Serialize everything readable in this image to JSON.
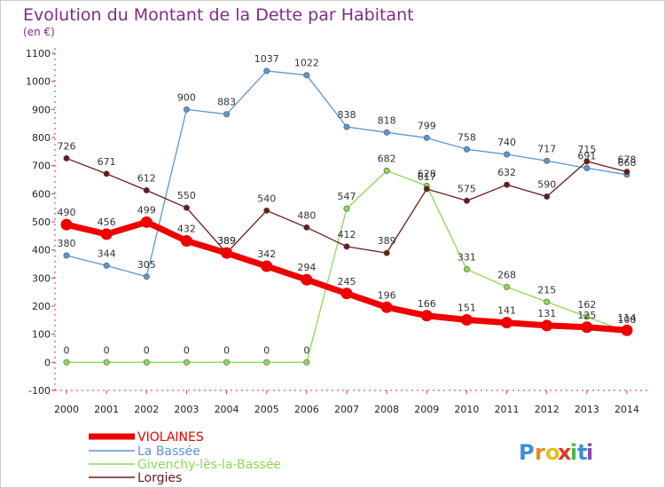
{
  "chart_data": {
    "type": "line",
    "title": "Evolution du Montant de la Dette par Habitant",
    "subtitle": "(en €)",
    "ylim": [
      -100,
      1100
    ],
    "yticks": [
      -100,
      0,
      100,
      200,
      300,
      400,
      500,
      600,
      700,
      800,
      900,
      1000,
      1100
    ],
    "categories": [
      "2000",
      "2001",
      "2002",
      "2003",
      "2004",
      "2005",
      "2006",
      "2007",
      "2008",
      "2009",
      "2010",
      "2011",
      "2012",
      "2013",
      "2014"
    ],
    "grid": false,
    "legend_position": "bottom-left",
    "series": [
      {
        "name": "VIOLAINES",
        "color": "#ee0000",
        "values": [
          490,
          456,
          499,
          432,
          389,
          342,
          294,
          245,
          196,
          166,
          151,
          141,
          131,
          125,
          114
        ]
      },
      {
        "name": "La Bassée",
        "color": "#5b96d1",
        "values": [
          380,
          344,
          305,
          900,
          883,
          1037,
          1022,
          838,
          818,
          799,
          758,
          740,
          717,
          691,
          668
        ]
      },
      {
        "name": "Givenchy-lès-la-Bassée",
        "color": "#8cd957",
        "values": [
          0,
          0,
          0,
          0,
          0,
          0,
          0,
          547,
          682,
          628,
          331,
          268,
          215,
          162,
          108
        ]
      },
      {
        "name": "Lorgies",
        "color": "#6b1a1a",
        "values": [
          726,
          671,
          612,
          550,
          389,
          540,
          480,
          412,
          389,
          617,
          575,
          632,
          590,
          715,
          678
        ]
      }
    ]
  },
  "logo": {
    "text": "Proxiti",
    "letters": [
      "P",
      "r",
      "o",
      "x",
      "i",
      "t",
      "i"
    ],
    "colors": [
      "#3a8fd8",
      "#f08a1a",
      "#e8c21a",
      "#d63a2a",
      "#4ab84a",
      "#3a8fd8",
      "#8a4ab8"
    ]
  }
}
